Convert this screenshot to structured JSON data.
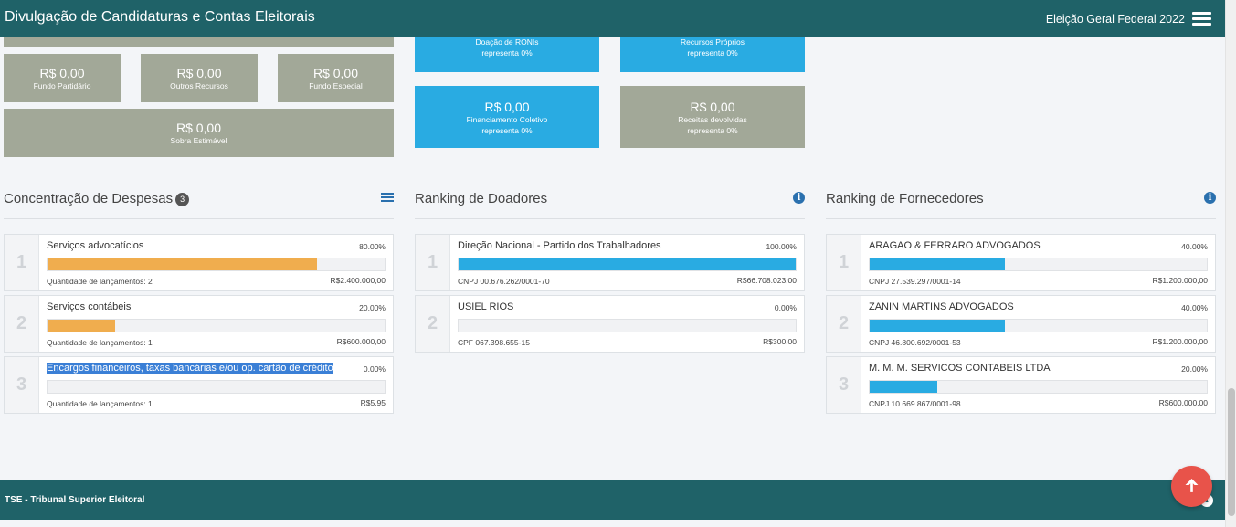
{
  "header": {
    "title": "Divulgação de Candidaturas e Contas Eleitorais",
    "election": "Eleição Geral Federal 2022",
    "menu_icon": "hamburger-menu-icon"
  },
  "receitas": {
    "gray_tiles": [
      {
        "amount": "R$ 0,00",
        "label": "Fundo Partidário"
      },
      {
        "amount": "R$ 0,00",
        "label": "Outros Recursos"
      },
      {
        "amount": "R$ 0,00",
        "label": "Fundo Especial"
      },
      {
        "amount": "R$ 0,00",
        "label": "Sobra Estimável"
      }
    ],
    "blue_tiles": [
      {
        "label": "Doação de RONIs",
        "note": "representa 0%"
      },
      {
        "label": "Recursos Próprios",
        "note": "representa 0%"
      },
      {
        "amount": "R$ 0,00",
        "label": "Financiamento Coletivo",
        "note": "representa 0%"
      }
    ],
    "devolvidas": {
      "amount": "R$ 0,00",
      "label": "Receitas devolvidas",
      "note": "representa 0%"
    }
  },
  "despesas": {
    "title": "Concentração de Despesas",
    "badge": "3",
    "icon": "list-icon",
    "bar_color": "#f0ad4e",
    "items": [
      {
        "rank": "1",
        "name": "Serviços advocatícios",
        "pct": "80.00%",
        "fill": 0.8,
        "sub": "Quantidade de lançamentos: 2",
        "value": "R$2.400.000,00"
      },
      {
        "rank": "2",
        "name": "Serviços contábeis",
        "pct": "20.00%",
        "fill": 0.2,
        "sub": "Quantidade de lançamentos: 1",
        "value": "R$600.000,00"
      },
      {
        "rank": "3",
        "name": "Encargos financeiros, taxas bancárias e/ou op. cartão de crédito",
        "pct": "0.00%",
        "fill": 0,
        "sub": "Quantidade de lançamentos: 1",
        "value": "R$5,95"
      }
    ]
  },
  "doadores": {
    "title": "Ranking de Doadores",
    "icon": "info-icon",
    "bar_color": "#29abe2",
    "items": [
      {
        "rank": "1",
        "name": "Direção Nacional - Partido dos Trabalhadores",
        "pct": "100.00%",
        "fill": 1,
        "sub": "CNPJ 00.676.262/0001-70",
        "value": "R$66.708.023,00"
      },
      {
        "rank": "2",
        "name": "USIEL RIOS",
        "pct": "0.00%",
        "fill": 0,
        "sub": "CPF 067.398.655-15",
        "value": "R$300,00"
      }
    ]
  },
  "fornecedores": {
    "title": "Ranking de Fornecedores",
    "icon": "info-icon",
    "bar_color": "#29abe2",
    "items": [
      {
        "rank": "1",
        "name": "ARAGAO & FERRARO ADVOGADOS",
        "pct": "40.00%",
        "fill": 0.4,
        "sub": "CNPJ 27.539.297/0001-14",
        "value": "R$1.200.000,00"
      },
      {
        "rank": "2",
        "name": "ZANIN MARTINS ADVOGADOS",
        "pct": "40.00%",
        "fill": 0.4,
        "sub": "CNPJ 46.800.692/0001-53",
        "value": "R$1.200.000,00"
      },
      {
        "rank": "3",
        "name": "M. M. M. SERVICOS CONTABEIS LTDA",
        "pct": "20.00%",
        "fill": 0.2,
        "sub": "CNPJ 10.669.867/0001-98",
        "value": "R$600.000,00"
      }
    ]
  },
  "footer": {
    "text": "TSE - Tribunal Superior Eleitoral",
    "icon": "info-icon"
  },
  "scroll_top": {
    "icon": "arrow-up-icon"
  },
  "colors": {
    "header": "#1f6268",
    "gray_tile": "#a2a898",
    "blue_tile": "#29abe2",
    "fab": "#e8534a"
  }
}
